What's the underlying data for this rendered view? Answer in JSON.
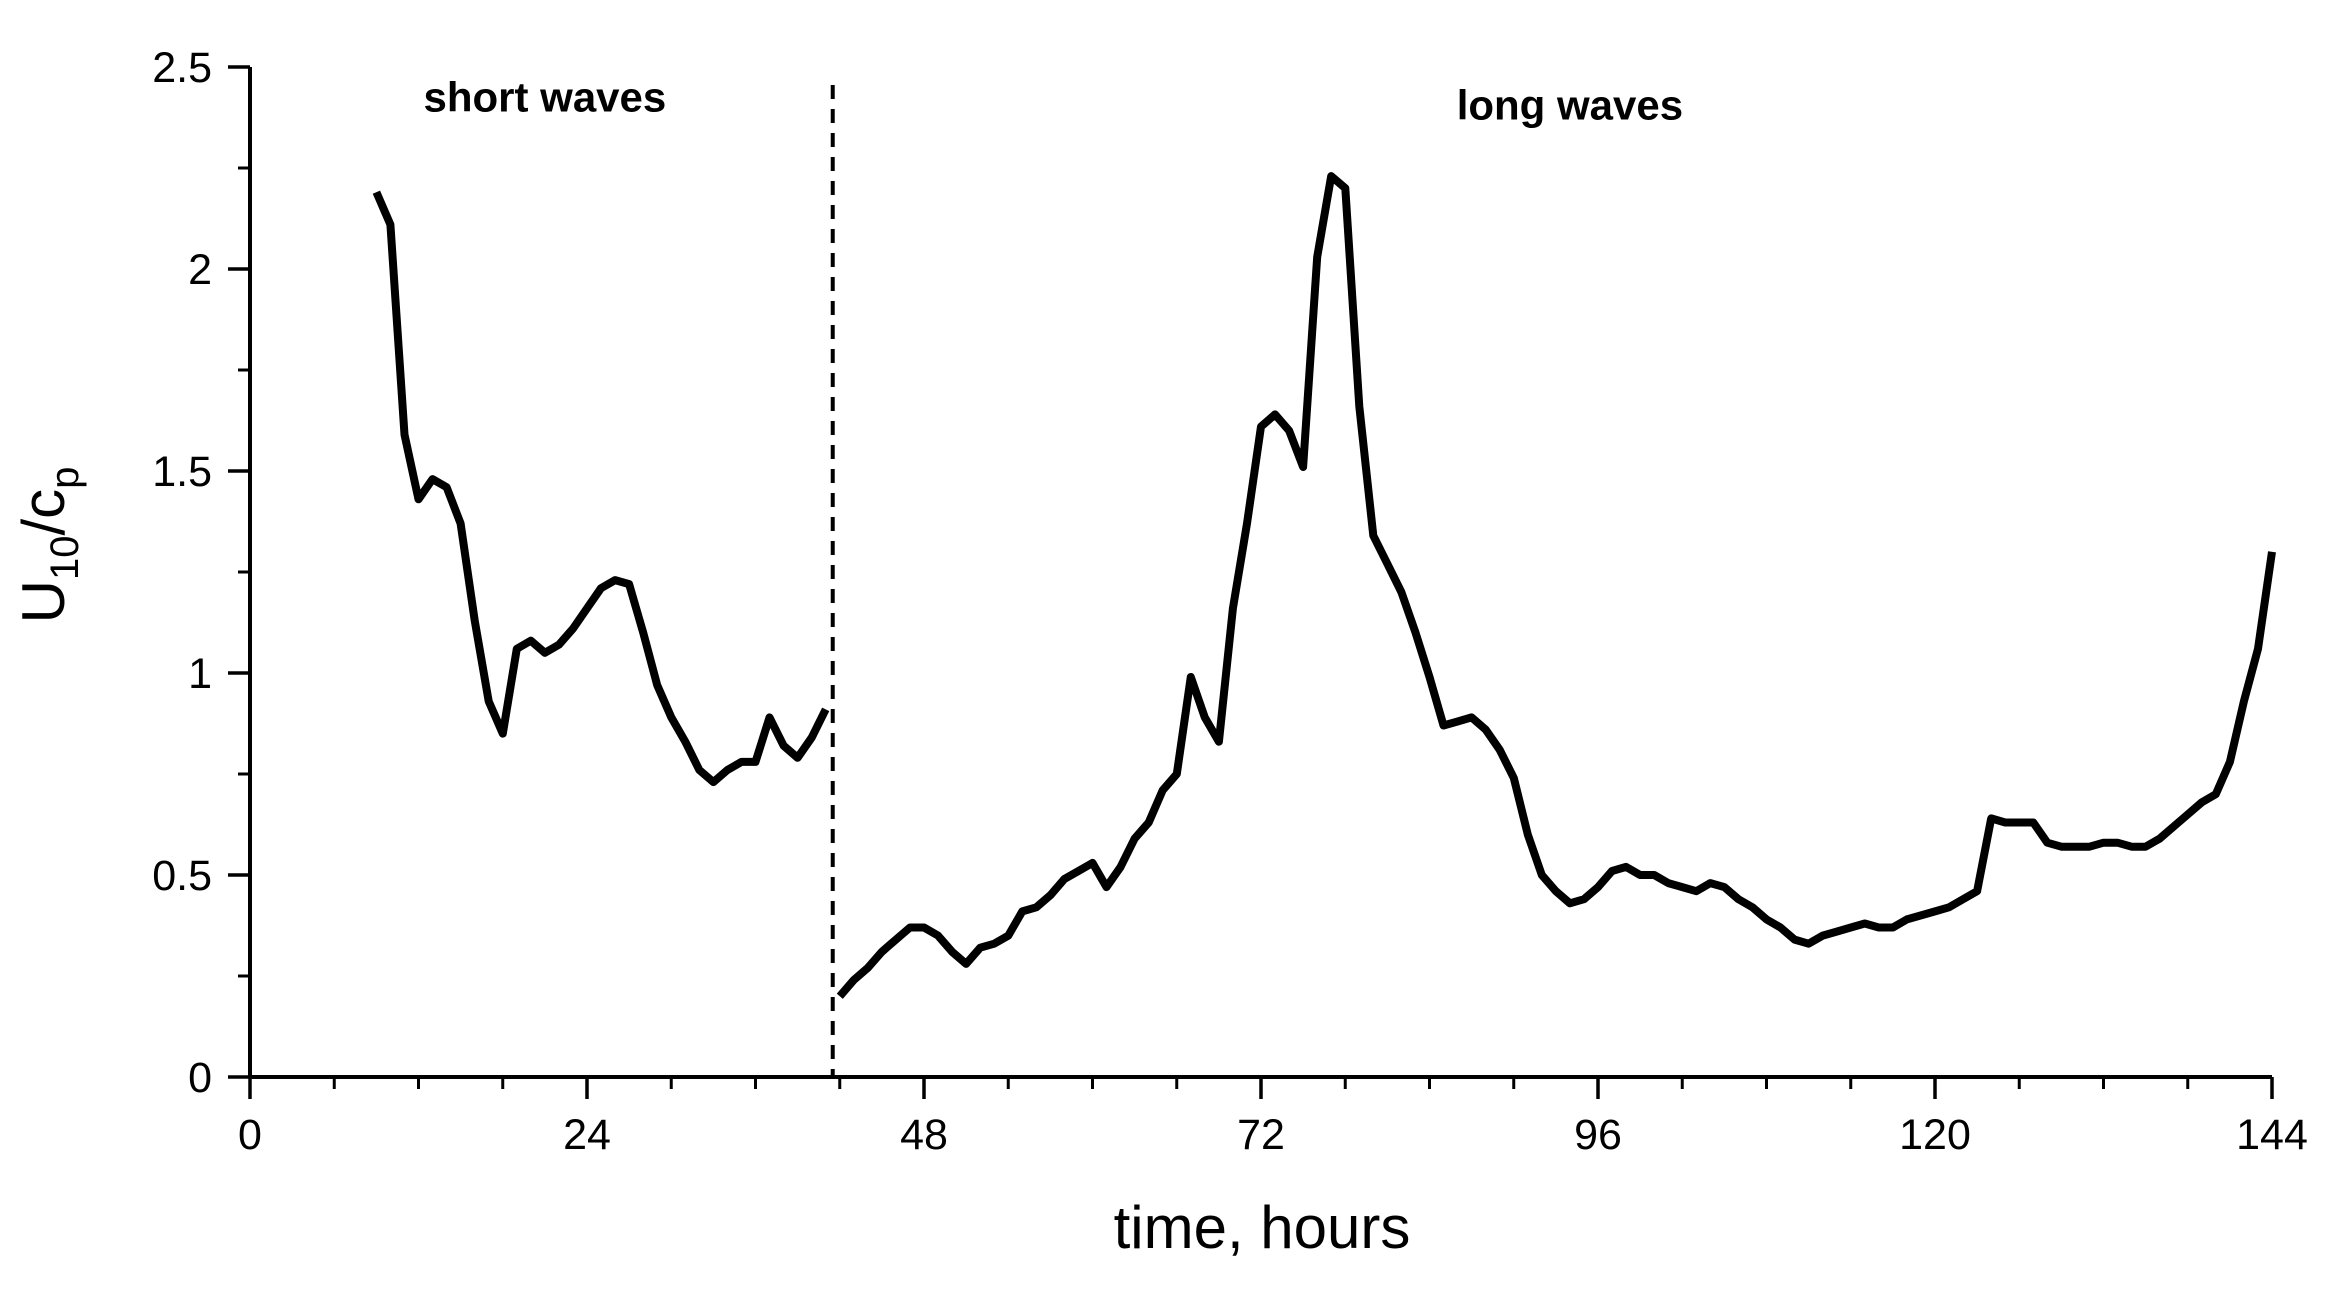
{
  "chart_data": {
    "type": "line",
    "title": "",
    "xlabel": "time, hours",
    "ylabel": {
      "main": "U",
      "sub1": "10",
      "mid": "/c",
      "sub2": "p"
    },
    "xlim": [
      0,
      144
    ],
    "ylim": [
      0,
      2.5
    ],
    "xticks": [
      0,
      24,
      48,
      72,
      96,
      120,
      144
    ],
    "xtick_labels": [
      "0",
      "24",
      "48",
      "72",
      "96",
      "120",
      "144"
    ],
    "x_minor_step": 6,
    "yticks": [
      0,
      0.5,
      1,
      1.5,
      2,
      2.5
    ],
    "ytick_labels": [
      "0",
      "0.5",
      "1",
      "1.5",
      "2",
      "2.5"
    ],
    "y_minor_step": 0.25,
    "grid": false,
    "line_color": "#000000",
    "divider": {
      "x": 41.5,
      "style": "dashed"
    },
    "annotations": [
      {
        "text": "short waves",
        "x": 21,
        "y": 2.39
      },
      {
        "text": "long waves",
        "x": 94,
        "y": 2.37
      }
    ],
    "series": [
      {
        "segment": "short waves",
        "points": [
          [
            9.0,
            2.19
          ],
          [
            10.0,
            2.11
          ],
          [
            11.0,
            1.59
          ],
          [
            12.0,
            1.43
          ],
          [
            13.0,
            1.48
          ],
          [
            14.0,
            1.46
          ],
          [
            15.0,
            1.37
          ],
          [
            16.0,
            1.13
          ],
          [
            17.0,
            0.93
          ],
          [
            18.0,
            0.85
          ],
          [
            19.0,
            1.06
          ],
          [
            20.0,
            1.08
          ],
          [
            21.0,
            1.05
          ],
          [
            22.0,
            1.07
          ],
          [
            23.0,
            1.11
          ],
          [
            24.0,
            1.16
          ],
          [
            25.0,
            1.21
          ],
          [
            26.0,
            1.23
          ],
          [
            27.0,
            1.22
          ],
          [
            28.0,
            1.1
          ],
          [
            29.0,
            0.97
          ],
          [
            30.0,
            0.89
          ],
          [
            31.0,
            0.83
          ],
          [
            32.0,
            0.76
          ],
          [
            33.0,
            0.73
          ],
          [
            34.0,
            0.76
          ],
          [
            35.0,
            0.78
          ],
          [
            36.0,
            0.78
          ],
          [
            37.0,
            0.89
          ],
          [
            38.0,
            0.82
          ],
          [
            39.0,
            0.79
          ],
          [
            40.0,
            0.84
          ],
          [
            41.0,
            0.91
          ]
        ]
      },
      {
        "segment": "long waves",
        "points": [
          [
            42.0,
            0.2
          ],
          [
            43.0,
            0.24
          ],
          [
            44.0,
            0.27
          ],
          [
            45.0,
            0.31
          ],
          [
            46.0,
            0.34
          ],
          [
            47.0,
            0.37
          ],
          [
            48.0,
            0.37
          ],
          [
            49.0,
            0.35
          ],
          [
            50.0,
            0.31
          ],
          [
            51.0,
            0.28
          ],
          [
            52.0,
            0.32
          ],
          [
            53.0,
            0.33
          ],
          [
            54.0,
            0.35
          ],
          [
            55.0,
            0.41
          ],
          [
            56.0,
            0.42
          ],
          [
            57.0,
            0.45
          ],
          [
            58.0,
            0.49
          ],
          [
            59.0,
            0.51
          ],
          [
            60.0,
            0.53
          ],
          [
            61.0,
            0.47
          ],
          [
            62.0,
            0.52
          ],
          [
            63.0,
            0.59
          ],
          [
            64.0,
            0.63
          ],
          [
            65.0,
            0.71
          ],
          [
            66.0,
            0.75
          ],
          [
            67.0,
            0.99
          ],
          [
            68.0,
            0.89
          ],
          [
            69.0,
            0.83
          ],
          [
            70.0,
            1.16
          ],
          [
            71.0,
            1.37
          ],
          [
            72.0,
            1.61
          ],
          [
            73.0,
            1.64
          ],
          [
            74.0,
            1.6
          ],
          [
            75.0,
            1.51
          ],
          [
            76.0,
            2.03
          ],
          [
            77.0,
            2.23
          ],
          [
            78.0,
            2.2
          ],
          [
            79.0,
            1.66
          ],
          [
            80.0,
            1.34
          ],
          [
            81.0,
            1.27
          ],
          [
            82.0,
            1.2
          ],
          [
            83.0,
            1.1
          ],
          [
            84.0,
            0.99
          ],
          [
            85.0,
            0.87
          ],
          [
            86.0,
            0.88
          ],
          [
            87.0,
            0.89
          ],
          [
            88.0,
            0.86
          ],
          [
            89.0,
            0.81
          ],
          [
            90.0,
            0.74
          ],
          [
            91.0,
            0.6
          ],
          [
            92.0,
            0.5
          ],
          [
            93.0,
            0.46
          ],
          [
            94.0,
            0.43
          ],
          [
            95.0,
            0.44
          ],
          [
            96.0,
            0.47
          ],
          [
            97.0,
            0.51
          ],
          [
            98.0,
            0.52
          ],
          [
            99.0,
            0.5
          ],
          [
            100.0,
            0.5
          ],
          [
            101.0,
            0.48
          ],
          [
            102.0,
            0.47
          ],
          [
            103.0,
            0.46
          ],
          [
            104.0,
            0.48
          ],
          [
            105.0,
            0.47
          ],
          [
            106.0,
            0.44
          ],
          [
            107.0,
            0.42
          ],
          [
            108.0,
            0.39
          ],
          [
            109.0,
            0.37
          ],
          [
            110.0,
            0.34
          ],
          [
            111.0,
            0.33
          ],
          [
            112.0,
            0.35
          ],
          [
            113.0,
            0.36
          ],
          [
            114.0,
            0.37
          ],
          [
            115.0,
            0.38
          ],
          [
            116.0,
            0.37
          ],
          [
            117.0,
            0.37
          ],
          [
            118.0,
            0.39
          ],
          [
            119.0,
            0.4
          ],
          [
            120.0,
            0.41
          ],
          [
            121.0,
            0.42
          ],
          [
            122.0,
            0.44
          ],
          [
            123.0,
            0.46
          ],
          [
            124.0,
            0.64
          ],
          [
            125.0,
            0.63
          ],
          [
            126.0,
            0.63
          ],
          [
            127.0,
            0.63
          ],
          [
            128.0,
            0.58
          ],
          [
            129.0,
            0.57
          ],
          [
            130.0,
            0.57
          ],
          [
            131.0,
            0.57
          ],
          [
            132.0,
            0.58
          ],
          [
            133.0,
            0.58
          ],
          [
            134.0,
            0.57
          ],
          [
            135.0,
            0.57
          ],
          [
            136.0,
            0.59
          ],
          [
            137.0,
            0.62
          ],
          [
            138.0,
            0.65
          ],
          [
            139.0,
            0.68
          ],
          [
            140.0,
            0.7
          ],
          [
            141.0,
            0.78
          ],
          [
            142.0,
            0.93
          ],
          [
            143.0,
            1.06
          ],
          [
            144.0,
            1.3
          ]
        ]
      }
    ]
  }
}
